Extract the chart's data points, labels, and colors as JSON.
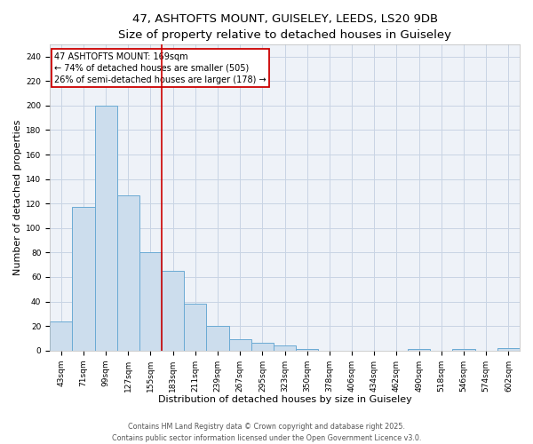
{
  "title_line1": "47, ASHTOFTS MOUNT, GUISELEY, LEEDS, LS20 9DB",
  "title_line2": "Size of property relative to detached houses in Guiseley",
  "xlabel": "Distribution of detached houses by size in Guiseley",
  "ylabel": "Number of detached properties",
  "bar_labels": [
    "43sqm",
    "71sqm",
    "99sqm",
    "127sqm",
    "155sqm",
    "183sqm",
    "211sqm",
    "239sqm",
    "267sqm",
    "295sqm",
    "323sqm",
    "350sqm",
    "378sqm",
    "406sqm",
    "434sqm",
    "462sqm",
    "490sqm",
    "518sqm",
    "546sqm",
    "574sqm",
    "602sqm"
  ],
  "bar_values": [
    24,
    117,
    200,
    127,
    80,
    65,
    38,
    20,
    9,
    6,
    4,
    1,
    0,
    0,
    0,
    0,
    1,
    0,
    1,
    0,
    2
  ],
  "bar_color": "#ccdded",
  "bar_edge_color": "#6aaad4",
  "ylim": [
    0,
    250
  ],
  "yticks": [
    0,
    20,
    40,
    60,
    80,
    100,
    120,
    140,
    160,
    180,
    200,
    220,
    240
  ],
  "annotation_text": "47 ASHTOFTS MOUNT: 169sqm\n← 74% of detached houses are smaller (505)\n26% of semi-detached houses are larger (178) →",
  "vline_index": 5.0,
  "annotation_box_color": "#cc0000",
  "grid_color": "#c8d4e4",
  "background_color": "#eef2f8",
  "footer_line1": "Contains HM Land Registry data © Crown copyright and database right 2025.",
  "footer_line2": "Contains public sector information licensed under the Open Government Licence v3.0.",
  "title_fontsize": 9.5,
  "subtitle_fontsize": 8.5,
  "annotation_fontsize": 7,
  "axis_label_fontsize": 8,
  "tick_fontsize": 6.5,
  "footer_fontsize": 5.8
}
